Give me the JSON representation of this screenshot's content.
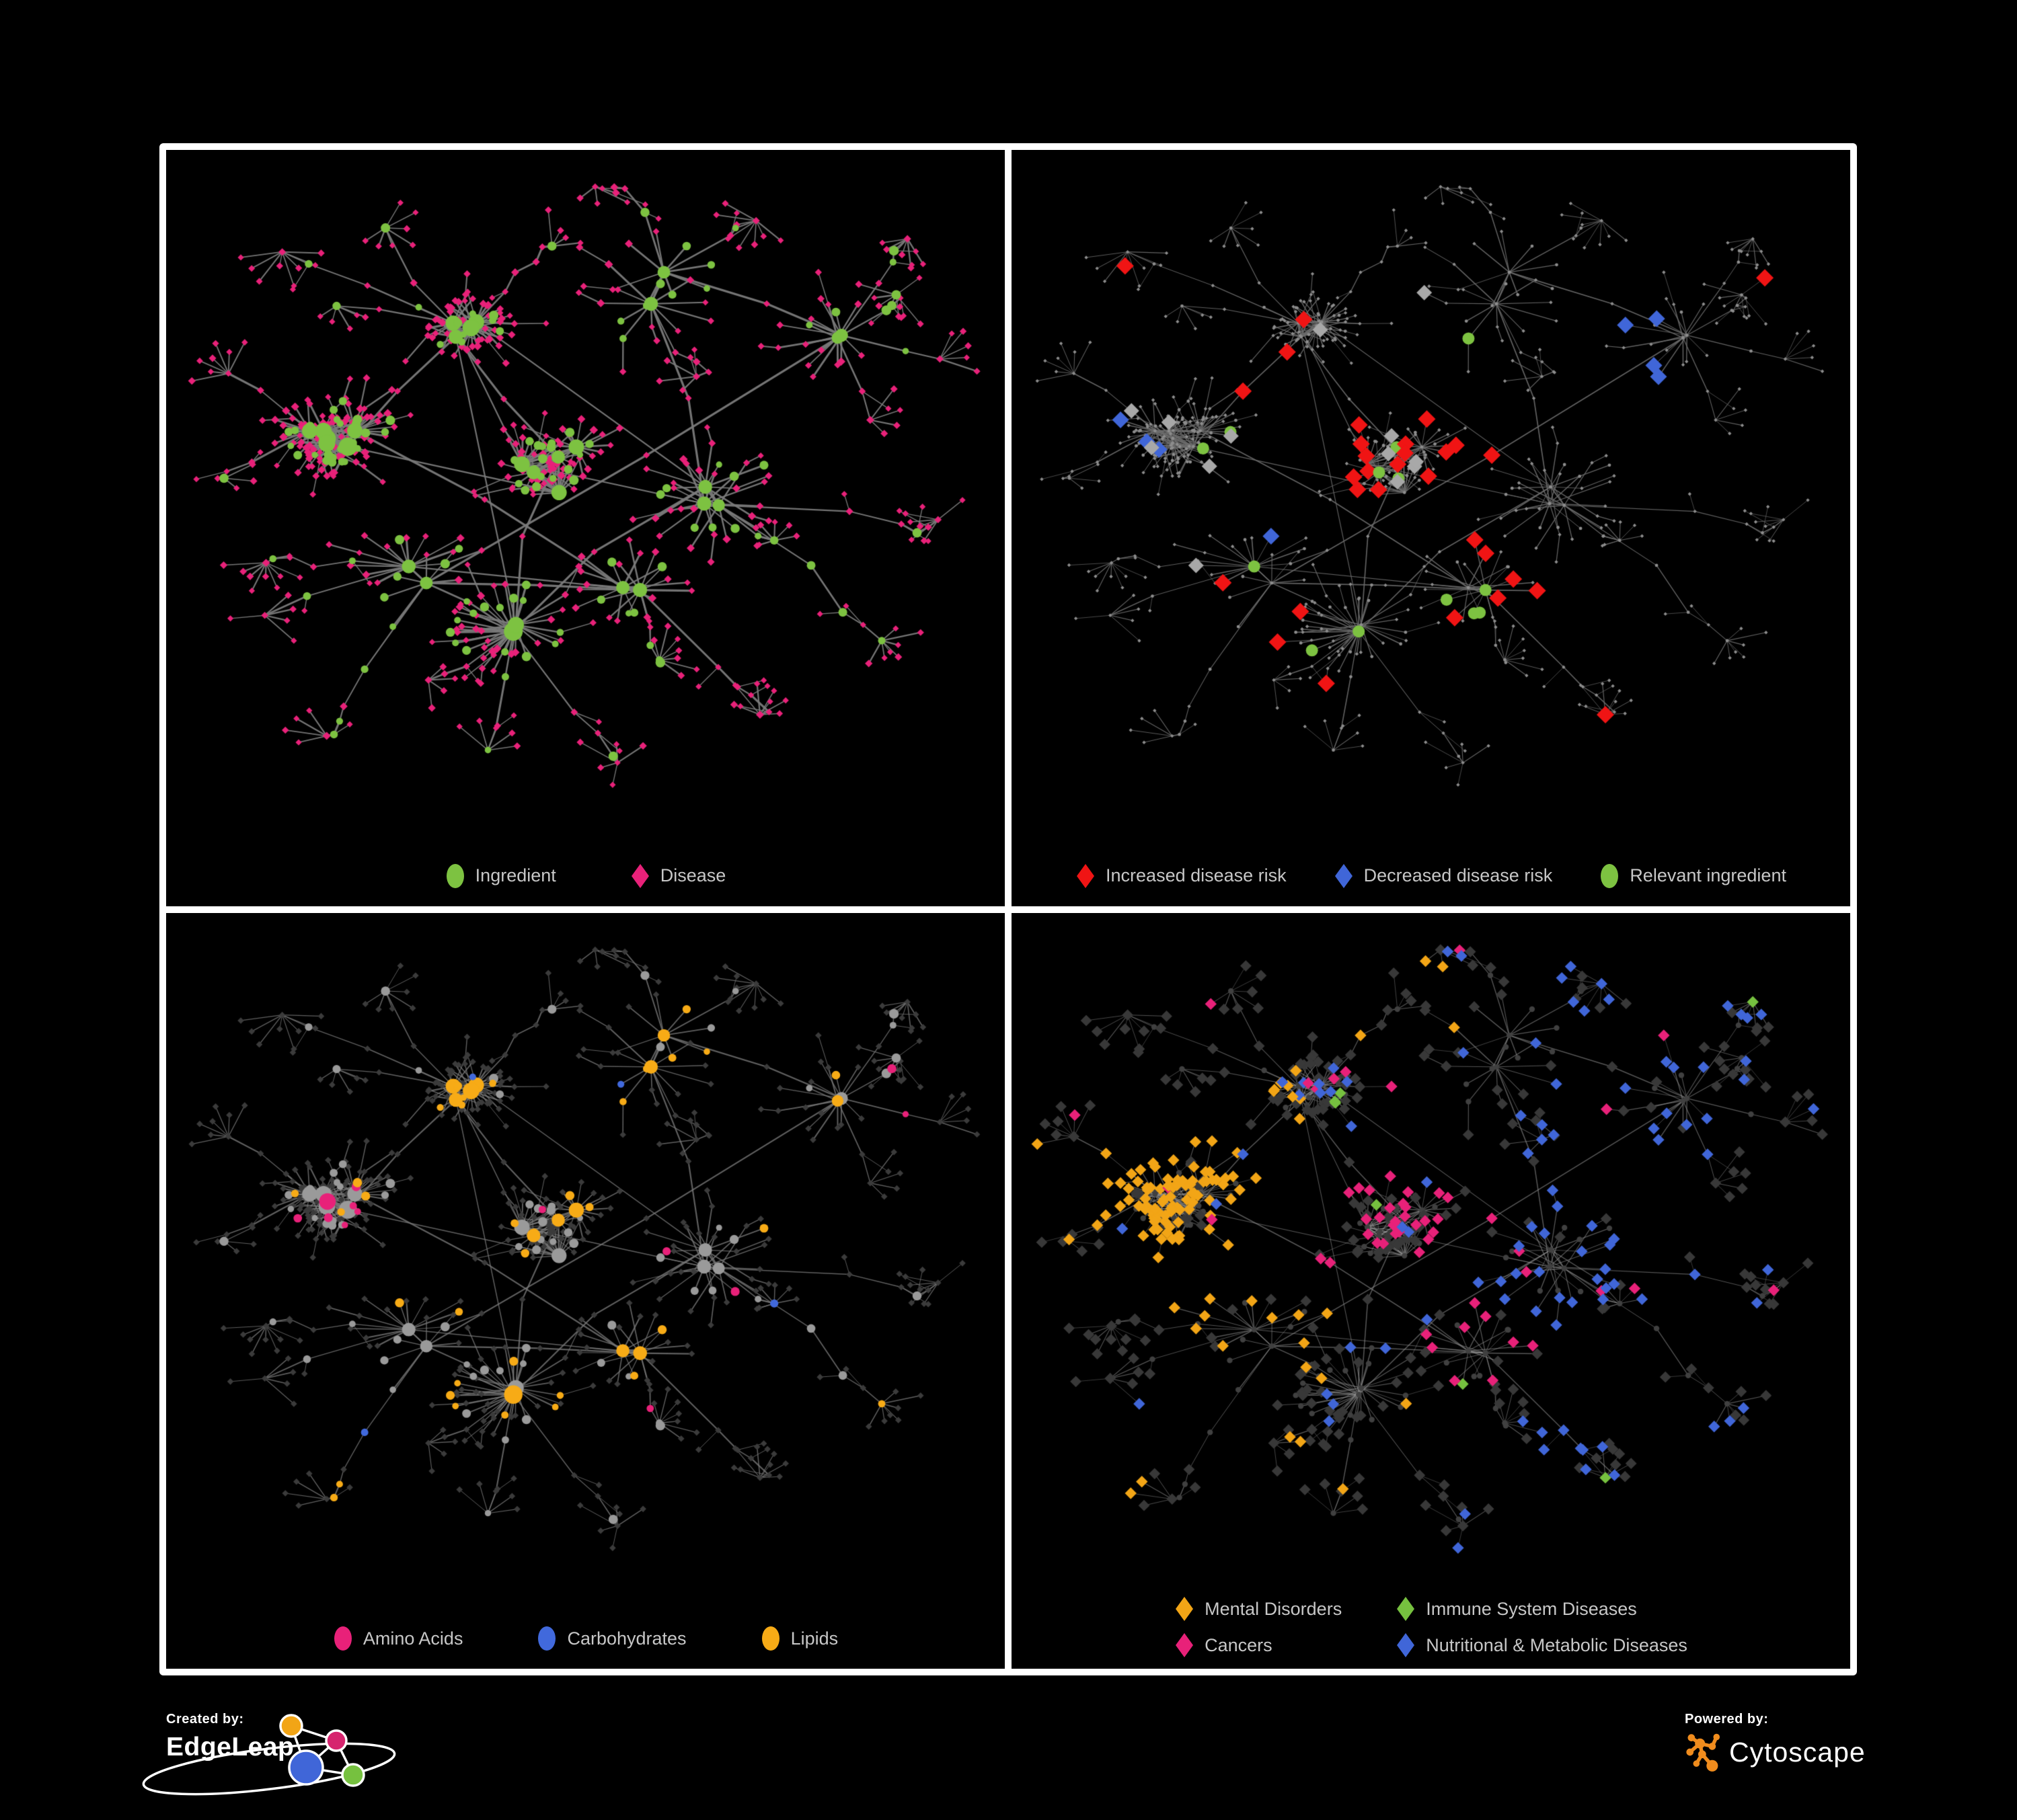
{
  "figure": {
    "background": "#000000",
    "panel_border_color": "#ffffff"
  },
  "panels": {
    "top_left": {
      "name": "ingredient-disease-network",
      "legend": [
        {
          "shape": "circle",
          "color": "#7dc241",
          "label": "Ingredient"
        },
        {
          "shape": "diamond",
          "color": "#e82179",
          "label": "Disease"
        }
      ]
    },
    "top_right": {
      "name": "disease-risk-network",
      "legend": [
        {
          "shape": "diamond",
          "color": "#f01414",
          "label": "Increased disease risk"
        },
        {
          "shape": "diamond",
          "color": "#4066d8",
          "label": "Decreased disease risk"
        },
        {
          "shape": "circle",
          "color": "#7dc241",
          "label": "Relevant ingredient"
        }
      ]
    },
    "bottom_left": {
      "name": "macronutrient-network",
      "legend": [
        {
          "shape": "circle",
          "color": "#e82179",
          "label": "Amino Acids"
        },
        {
          "shape": "circle",
          "color": "#4169dc",
          "label": "Carbohydrates"
        },
        {
          "shape": "circle",
          "color": "#f7ab16",
          "label": "Lipids"
        }
      ]
    },
    "bottom_right": {
      "name": "disease-category-network",
      "legend": [
        {
          "shape": "diamond",
          "color": "#f2a516",
          "label": "Mental Disorders"
        },
        {
          "shape": "diamond",
          "color": "#76c13f",
          "label": "Immune System Diseases"
        },
        {
          "shape": "diamond",
          "color": "#e82179",
          "label": "Cancers"
        },
        {
          "shape": "diamond",
          "color": "#4066d8",
          "label": "Nutritional & Metabolic Diseases"
        }
      ]
    }
  },
  "network_style": {
    "seed": 1337,
    "edge_colors": {
      "top_left": "#7a7a7a",
      "top_right": "#6d6d6d",
      "bottom_left": "#787878",
      "bottom_right": "#9e9e9e"
    },
    "node_colors": {
      "ingredient_green": "#7dc241",
      "disease_pink": "#e82179",
      "risk_red": "#f01414",
      "risk_blue": "#4066d8",
      "neutral_highlight_gray": "#a8a8a8",
      "tiny_gray": "#8d8d8d",
      "ingredient_gray": "#9a9a9a",
      "amino_pink": "#e82179",
      "carb_blue": "#4169dc",
      "lipid_orange": "#f7ab16",
      "dark_diamond": "#383838",
      "dark_circle": "#404040",
      "mental_orange": "#f2a516",
      "immune_green": "#76c13f",
      "cancer_pink": "#e82179",
      "metabolic_blue": "#4066d8"
    }
  },
  "branding": {
    "created_by_label": "Created by:",
    "created_by_name": "EdgeLeap",
    "powered_by_label": "Powered by:",
    "powered_by_name": "Cytoscape",
    "edgeleap_logo_colors": {
      "orange": "#f2a516",
      "pink": "#d6246e",
      "blue": "#4066d8",
      "green": "#76c13f"
    },
    "cytoscape_orange": "#f08c1d"
  }
}
